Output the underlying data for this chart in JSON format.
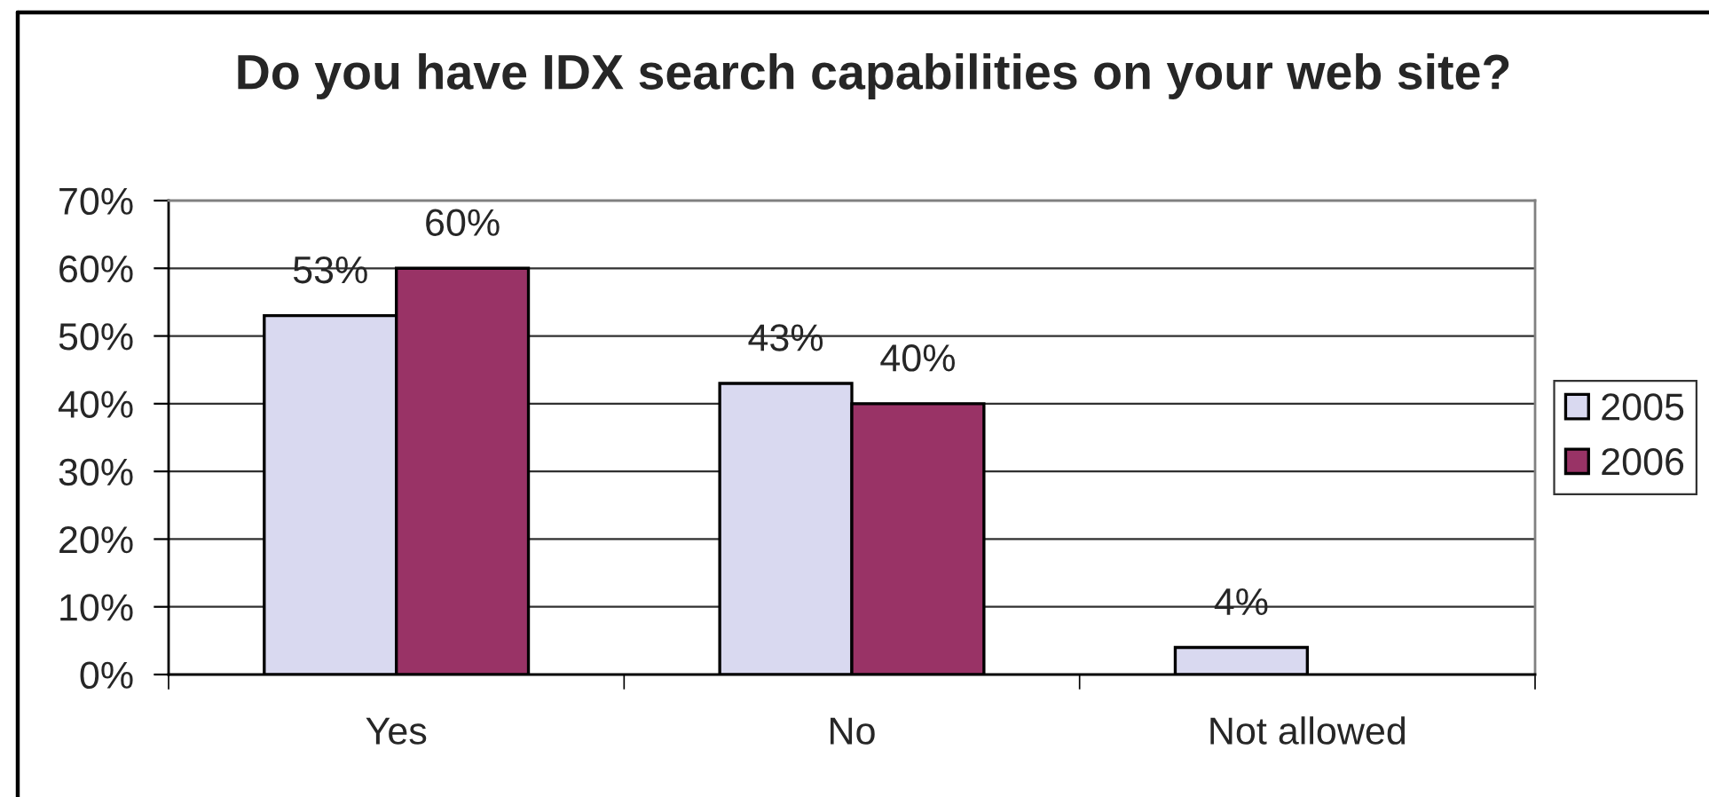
{
  "chart_data": {
    "type": "bar",
    "title": "Do you have IDX search capabilities on your web site?",
    "categories": [
      "Yes",
      "No",
      "Not allowed"
    ],
    "series": [
      {
        "name": "2005",
        "color": "#d9d9f0",
        "values": [
          53,
          43,
          4
        ],
        "value_labels": [
          "53%",
          "43%",
          "4%"
        ]
      },
      {
        "name": "2006",
        "color": "#993366",
        "values": [
          60,
          40,
          null
        ],
        "value_labels": [
          "60%",
          "40%",
          null
        ]
      }
    ],
    "ylim": [
      0,
      70
    ],
    "yticks": [
      {
        "value": 0,
        "label": "0%"
      },
      {
        "value": 10,
        "label": "10%"
      },
      {
        "value": 20,
        "label": "20%"
      },
      {
        "value": 30,
        "label": "30%"
      },
      {
        "value": 40,
        "label": "40%"
      },
      {
        "value": 50,
        "label": "50%"
      },
      {
        "value": 60,
        "label": "60%"
      },
      {
        "value": 70,
        "label": "70%"
      }
    ],
    "grid": "y",
    "legend": "right"
  }
}
